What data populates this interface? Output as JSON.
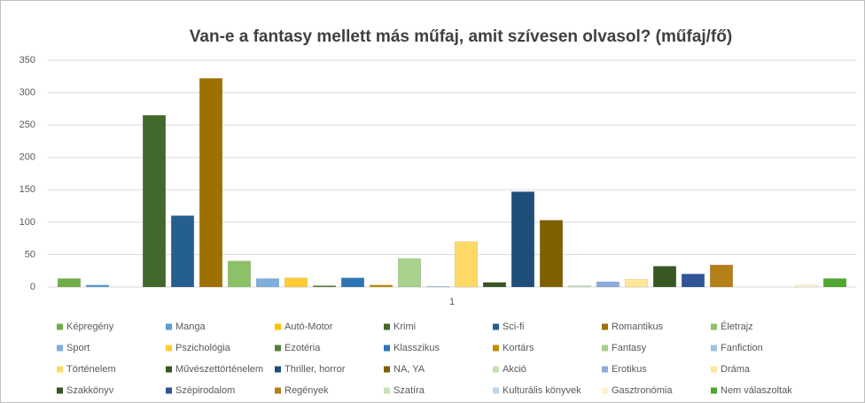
{
  "chart_data": {
    "type": "bar",
    "title": "Van-e a fantasy mellett más műfaj, amit szívesen olvasol? (műfaj/fő)",
    "categories": [
      "1"
    ],
    "ylim": [
      0,
      350
    ],
    "yticks": [
      0,
      50,
      100,
      150,
      200,
      250,
      300,
      350
    ],
    "grid": true,
    "legend": "bottom",
    "series": [
      {
        "name": "Képregény",
        "color": "#70ad47",
        "values": [
          13
        ]
      },
      {
        "name": "Manga",
        "color": "#5b9bd5",
        "values": [
          3
        ]
      },
      {
        "name": "Autó-Motor",
        "color": "#ffc000",
        "values": [
          0
        ]
      },
      {
        "name": "Krimi",
        "color": "#43682b",
        "values": [
          265
        ]
      },
      {
        "name": "Sci-fi",
        "color": "#255e91",
        "values": [
          110
        ]
      },
      {
        "name": "Romantikus",
        "color": "#9e7000",
        "values": [
          322
        ]
      },
      {
        "name": "Életrajz",
        "color": "#8cc168",
        "values": [
          40
        ]
      },
      {
        "name": "Sport",
        "color": "#7cafdd",
        "values": [
          13
        ]
      },
      {
        "name": "Pszichológia",
        "color": "#ffcd33",
        "values": [
          14
        ]
      },
      {
        "name": "Ezotéria",
        "color": "#548235",
        "values": [
          2
        ]
      },
      {
        "name": "Klasszikus",
        "color": "#2e75b6",
        "values": [
          14
        ]
      },
      {
        "name": "Kortárs",
        "color": "#bf8f00",
        "values": [
          3
        ]
      },
      {
        "name": "Fantasy",
        "color": "#a9d18e",
        "values": [
          44
        ]
      },
      {
        "name": "Fanfiction",
        "color": "#9dc3e6",
        "values": [
          1
        ]
      },
      {
        "name": "Történelem",
        "color": "#ffd966",
        "values": [
          70
        ]
      },
      {
        "name": "Művészettörténelem",
        "color": "#375623",
        "values": [
          7
        ]
      },
      {
        "name": "Thriller, horror",
        "color": "#1f4e79",
        "values": [
          147
        ]
      },
      {
        "name": "NA, YA",
        "color": "#7f6000",
        "values": [
          103
        ]
      },
      {
        "name": "Akció",
        "color": "#c5e0b4",
        "values": [
          2
        ]
      },
      {
        "name": "Erotikus",
        "color": "#8faadc",
        "values": [
          8
        ]
      },
      {
        "name": "Dráma",
        "color": "#ffe699",
        "values": [
          12
        ]
      },
      {
        "name": "Szakkönyv",
        "color": "#385723",
        "values": [
          32
        ]
      },
      {
        "name": "Szépirodalom",
        "color": "#2f5597",
        "values": [
          20
        ]
      },
      {
        "name": "Regények",
        "color": "#b57f1a",
        "values": [
          34
        ]
      },
      {
        "name": "Szatíra",
        "color": "#c9e3b5",
        "values": [
          0
        ]
      },
      {
        "name": "Kulturális könyvek",
        "color": "#bdd7ee",
        "values": [
          0
        ]
      },
      {
        "name": "Gasztronómia",
        "color": "#fff2cc",
        "values": [
          3
        ]
      },
      {
        "name": "Nem válaszoltak",
        "color": "#4ea72e",
        "values": [
          13
        ]
      }
    ]
  }
}
